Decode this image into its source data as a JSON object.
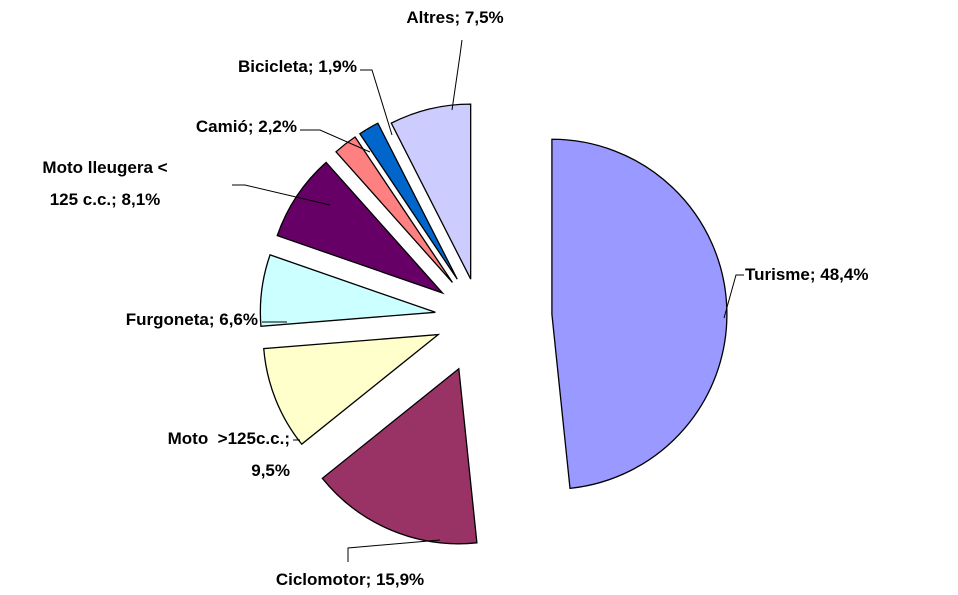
{
  "chart_data": {
    "type": "pie",
    "categories": [
      "Turisme",
      "Ciclomotor",
      "Moto >125c.c.",
      "Furgoneta",
      "Moto lleugera < 125 c.c.",
      "Camió",
      "Bicicleta",
      "Altres"
    ],
    "values": [
      48.4,
      15.9,
      9.5,
      6.6,
      8.1,
      2.2,
      1.9,
      7.5
    ],
    "value_labels": [
      "Turisme; 48,4%",
      "Ciclomotor; 15,9%",
      "Moto  >125c.c.;\n9,5%",
      "Furgoneta; 6,6%",
      "Moto lleugera <\n125 c.c.; 8,1%",
      "Camió; 2,2%",
      "Bicicleta; 1,9%",
      "Altres; 7,5%"
    ],
    "colors": [
      "#9999ff",
      "#993366",
      "#ffffcc",
      "#ccffff",
      "#660066",
      "#ff8080",
      "#0066cc",
      "#ccccff"
    ]
  }
}
